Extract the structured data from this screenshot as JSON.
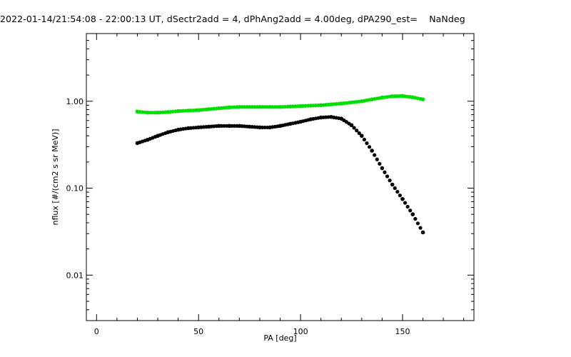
{
  "chart_data": {
    "type": "scatter",
    "title": "2022-01-14/21:54:08 - 22:00:13 UT, dSectr2add = 4, dPhAng2add = 4.00deg, dPA290_est=    NaNdeg",
    "xlabel": "PA [deg]",
    "ylabel": "nflux [#/(cm2 s sr MeV)]",
    "xlim": [
      -5,
      185
    ],
    "ylim": [
      0.003,
      6
    ],
    "yscale": "log",
    "grid": false,
    "xticks": [
      {
        "value": 0,
        "label": "0"
      },
      {
        "value": 50,
        "label": "50"
      },
      {
        "value": 100,
        "label": "100"
      },
      {
        "value": 150,
        "label": "150"
      }
    ],
    "yticks": [
      {
        "value": 0.01,
        "label": "0.01"
      },
      {
        "value": 0.1,
        "label": "0.10"
      },
      {
        "value": 1,
        "label": "1.00"
      }
    ],
    "series": [
      {
        "color": "#00e000",
        "points": [
          [
            20,
            0.76
          ],
          [
            25,
            0.74
          ],
          [
            30,
            0.74
          ],
          [
            35,
            0.75
          ],
          [
            40,
            0.77
          ],
          [
            45,
            0.78
          ],
          [
            50,
            0.79
          ],
          [
            55,
            0.81
          ],
          [
            60,
            0.83
          ],
          [
            65,
            0.85
          ],
          [
            70,
            0.86
          ],
          [
            75,
            0.86
          ],
          [
            80,
            0.86
          ],
          [
            85,
            0.86
          ],
          [
            90,
            0.86
          ],
          [
            95,
            0.87
          ],
          [
            100,
            0.88
          ],
          [
            105,
            0.89
          ],
          [
            110,
            0.9
          ],
          [
            115,
            0.92
          ],
          [
            120,
            0.94
          ],
          [
            125,
            0.97
          ],
          [
            130,
            1.0
          ],
          [
            135,
            1.05
          ],
          [
            140,
            1.1
          ],
          [
            145,
            1.14
          ],
          [
            150,
            1.15
          ],
          [
            155,
            1.11
          ],
          [
            160,
            1.05
          ]
        ]
      },
      {
        "color": "#000000",
        "points": [
          [
            20,
            0.33
          ],
          [
            25,
            0.36
          ],
          [
            30,
            0.4
          ],
          [
            35,
            0.44
          ],
          [
            40,
            0.47
          ],
          [
            45,
            0.49
          ],
          [
            50,
            0.5
          ],
          [
            55,
            0.51
          ],
          [
            60,
            0.52
          ],
          [
            65,
            0.52
          ],
          [
            70,
            0.52
          ],
          [
            75,
            0.51
          ],
          [
            80,
            0.5
          ],
          [
            85,
            0.5
          ],
          [
            90,
            0.52
          ],
          [
            95,
            0.55
          ],
          [
            100,
            0.58
          ],
          [
            105,
            0.62
          ],
          [
            110,
            0.65
          ],
          [
            115,
            0.66
          ],
          [
            120,
            0.63
          ],
          [
            125,
            0.53
          ],
          [
            130,
            0.4
          ],
          [
            135,
            0.27
          ],
          [
            140,
            0.17
          ],
          [
            145,
            0.11
          ],
          [
            150,
            0.075
          ],
          [
            155,
            0.05
          ],
          [
            160,
            0.031
          ]
        ]
      }
    ]
  }
}
